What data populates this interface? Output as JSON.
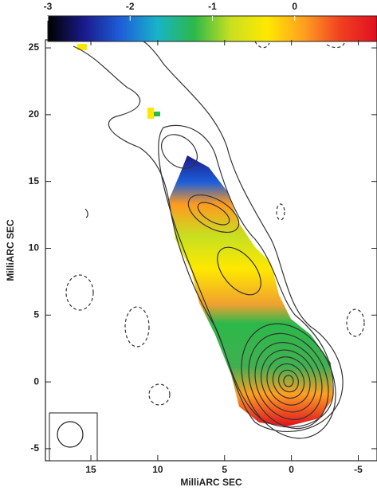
{
  "chart_data": {
    "type": "image",
    "xlabel": "MilliARC SEC",
    "ylabel": "MilliARC SEC",
    "xlim": [
      18.4,
      -6.4
    ],
    "xticks": [
      15,
      10,
      5,
      0,
      -5
    ],
    "ylim": [
      -5.9,
      25.6
    ],
    "yticks": [
      25,
      20,
      15,
      10,
      5,
      0,
      -5
    ],
    "colorbar": {
      "lim": [
        -3,
        1
      ],
      "ticks": [
        -3,
        -2,
        -1,
        0
      ],
      "colors": [
        "#000000",
        "#1a1a8c",
        "#1e5fd8",
        "#18b4c8",
        "#2cb84a",
        "#c8e020",
        "#ffe800",
        "#ffa020",
        "#f04020",
        "#e01020"
      ]
    }
  }
}
